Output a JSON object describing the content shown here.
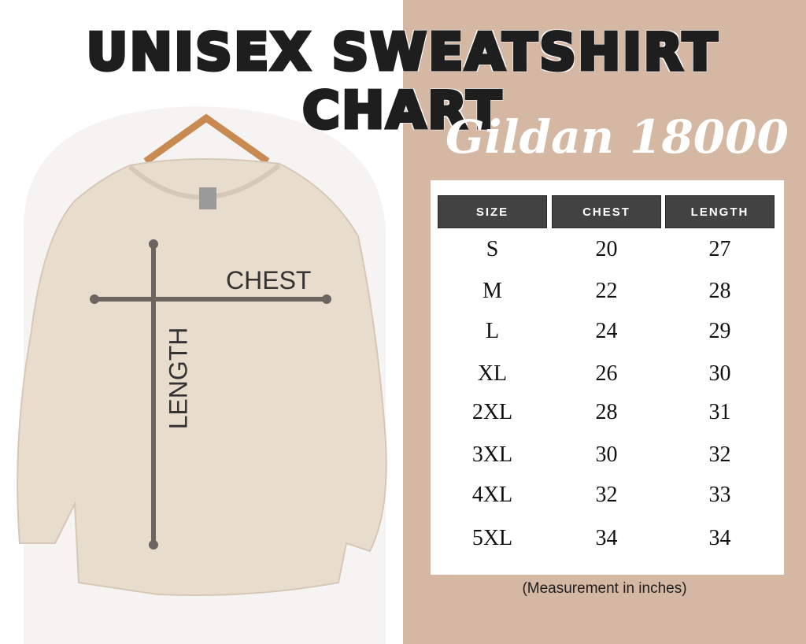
{
  "title": "UNISEX SWEATSHIRT CHART",
  "subtitle": "Gildan 18000",
  "diagram": {
    "chest_label": "CHEST",
    "length_label": "LENGTH"
  },
  "table": {
    "headers": [
      "SIZE",
      "CHEST",
      "LENGTH"
    ],
    "rows": [
      [
        "S",
        "20",
        "27"
      ],
      [
        "M",
        "22",
        "28"
      ],
      [
        "L",
        "24",
        "29"
      ],
      [
        "XL",
        "26",
        "30"
      ],
      [
        "2XL",
        "28",
        "31"
      ],
      [
        "3XL",
        "30",
        "32"
      ],
      [
        "4XL",
        "32",
        "33"
      ],
      [
        "5XL",
        "34",
        "34"
      ]
    ]
  },
  "note": "(Measurement in inches)",
  "colors": {
    "panel": "#d4b8a4",
    "header": "#424242",
    "garment": "#e8dccd",
    "measure_line": "#6b6460"
  }
}
